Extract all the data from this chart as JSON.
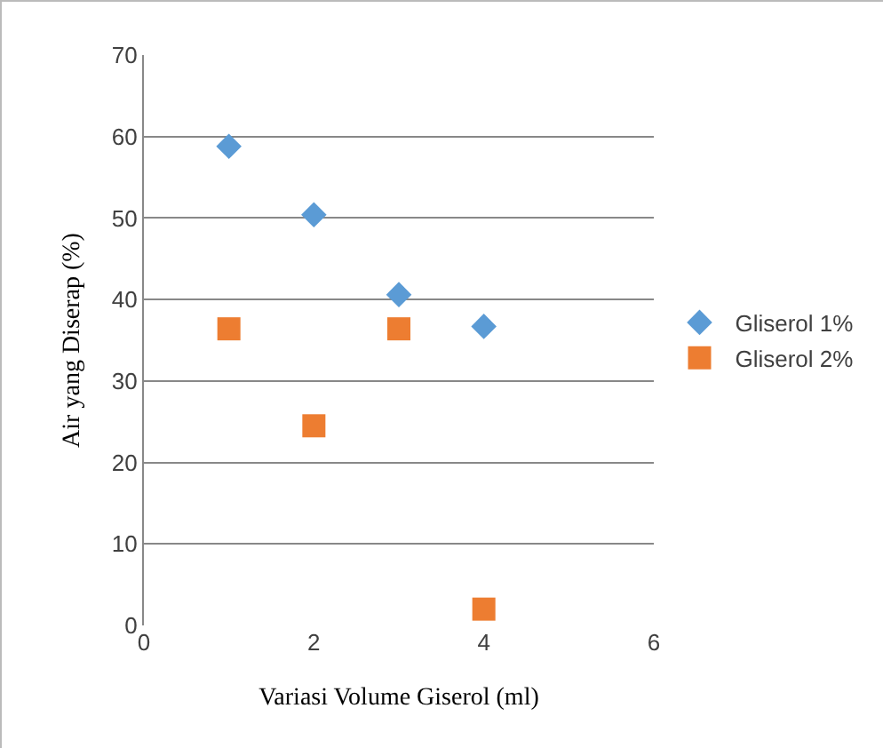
{
  "chart_data": {
    "type": "scatter",
    "xlabel": "Variasi Volume Giserol (ml)",
    "ylabel": "Air yang Diserap (%)",
    "xlim": [
      0,
      6
    ],
    "xticks": [
      0,
      2,
      4,
      6
    ],
    "ylim": [
      0,
      70
    ],
    "yticks": [
      0,
      10,
      20,
      30,
      40,
      50,
      60,
      70
    ],
    "grid": "y",
    "legend": "right",
    "x": [
      1,
      2,
      3,
      4
    ],
    "series": [
      {
        "name": "Gliserol 1%",
        "color": "#5b9bd5",
        "marker": "diamond",
        "values": [
          58.8,
          50.4,
          40.6,
          36.7
        ]
      },
      {
        "name": "Gliserol 2%",
        "color": "#ed7d31",
        "marker": "square",
        "values": [
          36.4,
          24.5,
          36.4,
          2.0
        ]
      }
    ]
  }
}
